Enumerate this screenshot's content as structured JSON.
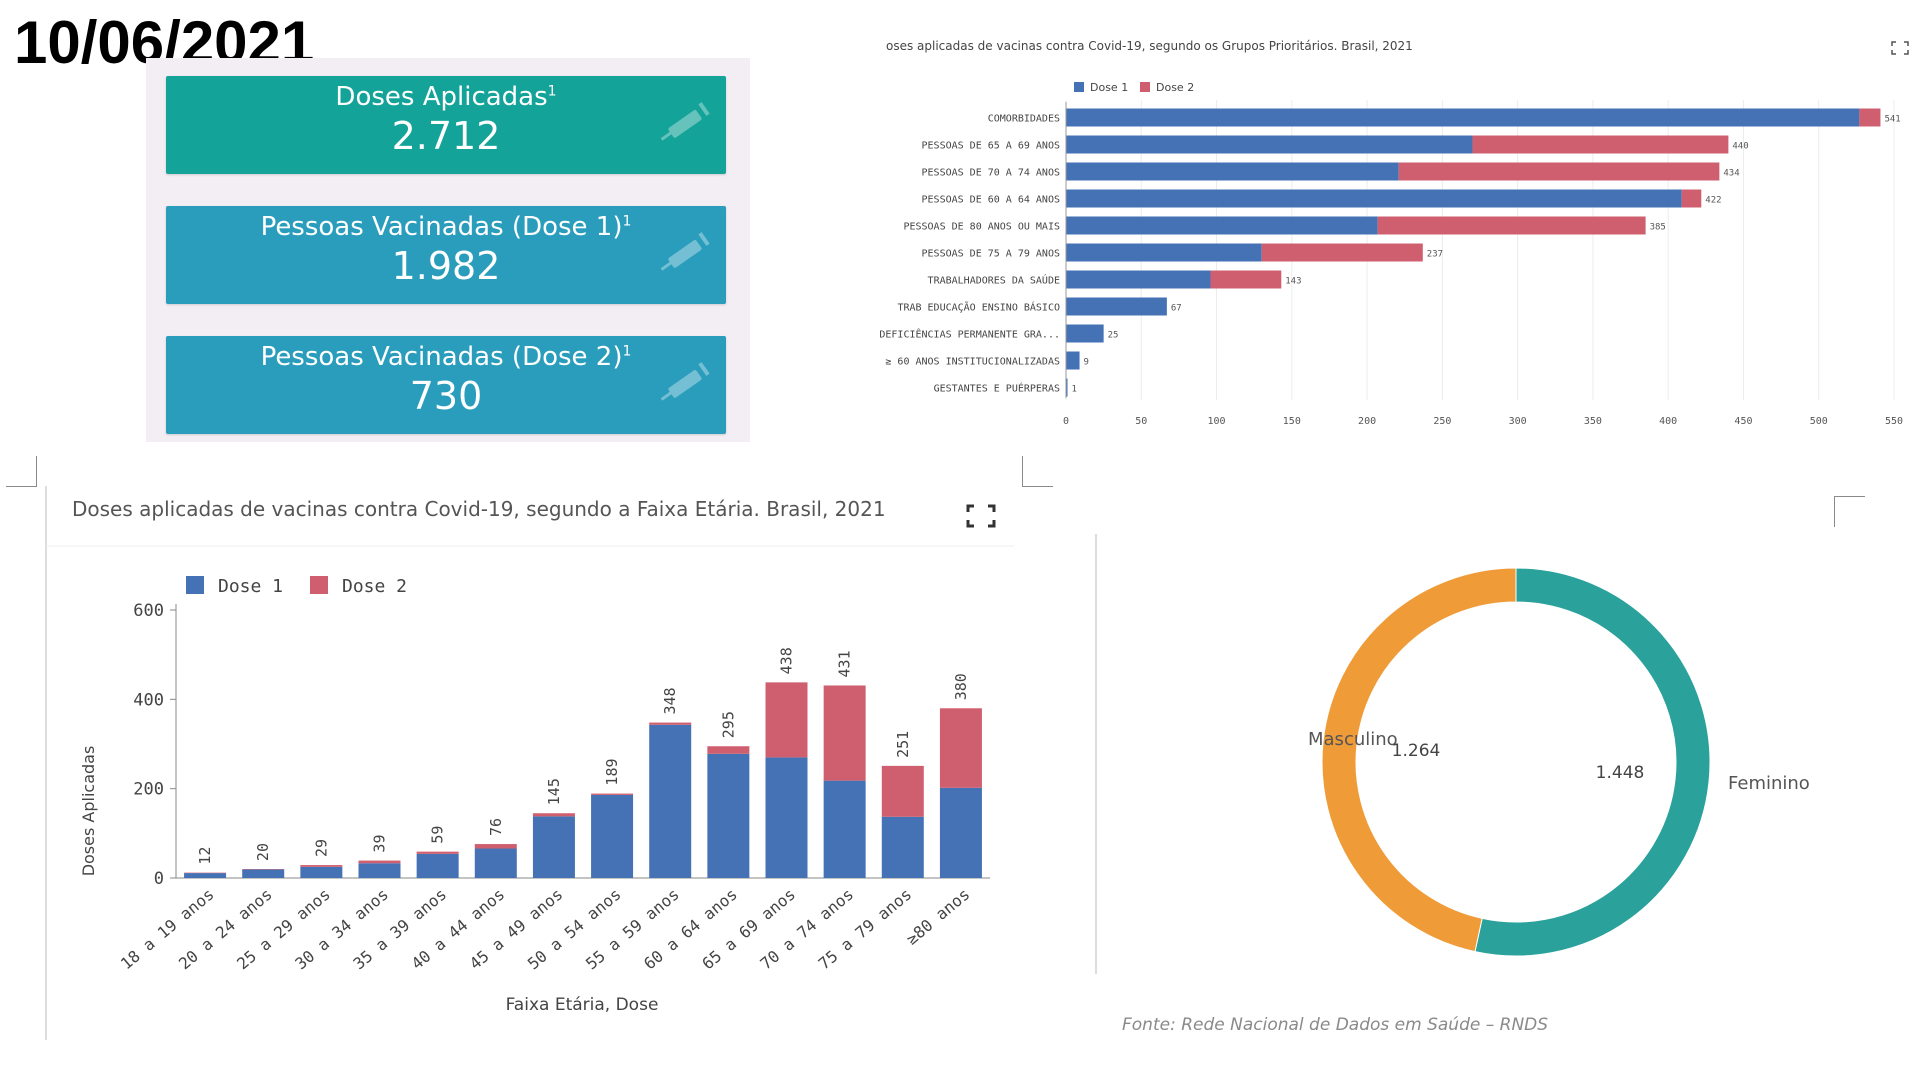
{
  "date": "10/06/2021",
  "kpis": [
    {
      "label": "Doses Aplicadas",
      "sup": "1",
      "value": "2.712",
      "color": "#14a398"
    },
    {
      "label": "Pessoas Vacinadas (Dose 1)",
      "sup": "1",
      "value": "1.982",
      "color": "#2a9dbc"
    },
    {
      "label": "Pessoas Vacinadas (Dose 2)",
      "sup": "1",
      "value": "730",
      "color": "#2a9dbc"
    }
  ],
  "colors": {
    "dose1": "#4472b4",
    "dose2": "#cf5f6f",
    "feminino": "#2aa19b",
    "masculino": "#ef9b38"
  },
  "chart_data": [
    {
      "type": "bar",
      "orientation": "horizontal",
      "stacked": true,
      "title": "oses aplicadas de vacinas contra Covid-19, segundo os Grupos Prioritários. Brasil, 2021",
      "legend": [
        "Dose 1",
        "Dose 2"
      ],
      "legend_position": "top-left",
      "categories": [
        "COMORBIDADES",
        "PESSOAS DE 65 A 69 ANOS",
        "PESSOAS DE 70 A 74 ANOS",
        "PESSOAS DE 60 A 64 ANOS",
        "PESSOAS DE 80 ANOS OU MAIS",
        "PESSOAS DE 75 A 79 ANOS",
        "TRABALHADORES DA SAÚDE",
        "TRAB EDUCAÇÃO ENSINO BÁSICO",
        "DEFICIÊNCIAS PERMANENTE GRA...",
        "≥ 60 ANOS INSTITUCIONALIZADAS",
        "GESTANTES E PUÉRPERAS"
      ],
      "series": [
        {
          "name": "Dose 1",
          "values": [
            527,
            270,
            221,
            409,
            207,
            130,
            96,
            67,
            25,
            9,
            1
          ]
        },
        {
          "name": "Dose 2",
          "values": [
            14,
            170,
            213,
            13,
            178,
            107,
            47,
            0,
            0,
            0,
            0
          ]
        }
      ],
      "totals": [
        "541",
        "440",
        "434",
        "422",
        "385",
        "237",
        "143",
        "67",
        "25",
        "9",
        "1"
      ],
      "xticks": [
        "0",
        "50",
        "100",
        "150",
        "200",
        "250",
        "300",
        "350",
        "400",
        "450",
        "500",
        "550"
      ],
      "xlim": [
        0,
        550
      ]
    },
    {
      "type": "bar",
      "stacked": true,
      "title": "Doses aplicadas de vacinas contra Covid-19, segundo a Faixa Etária. Brasil, 2021",
      "xlabel": "Faixa Etária, Dose",
      "ylabel": "Doses Aplicadas",
      "legend": [
        "Dose 1",
        "Dose 2"
      ],
      "legend_position": "top-left",
      "categories": [
        "18 a 19 anos",
        "20 a 24 anos",
        "25 a 29 anos",
        "30 a 34 anos",
        "35 a 39 anos",
        "40 a 44 anos",
        "45 a 49 anos",
        "50 a 54 anos",
        "55 a 59 anos",
        "60 a 64 anos",
        "65 a 69 anos",
        "70 a 74 anos",
        "75 a 79 anos",
        "≥80 anos"
      ],
      "series": [
        {
          "name": "Dose 1",
          "values": [
            11,
            19,
            25,
            33,
            54,
            66,
            138,
            186,
            343,
            278,
            270,
            218,
            137,
            202
          ]
        },
        {
          "name": "Dose 2",
          "values": [
            1,
            1,
            4,
            6,
            5,
            10,
            7,
            3,
            5,
            17,
            168,
            213,
            114,
            178
          ]
        }
      ],
      "totals": [
        "12",
        "20",
        "29",
        "39",
        "59",
        "76",
        "145",
        "189",
        "348",
        "295",
        "438",
        "431",
        "251",
        "380"
      ],
      "yticks": [
        "0",
        "200",
        "400",
        "600"
      ],
      "ylim": [
        0,
        600
      ]
    },
    {
      "type": "pie",
      "donut": true,
      "slices": [
        {
          "label": "Feminino",
          "value": 1448,
          "display": "1.448"
        },
        {
          "label": "Masculino",
          "value": 1264,
          "display": "1.264"
        }
      ]
    }
  ],
  "source": "Fonte: Rede Nacional de Dados em Saúde – RNDS"
}
